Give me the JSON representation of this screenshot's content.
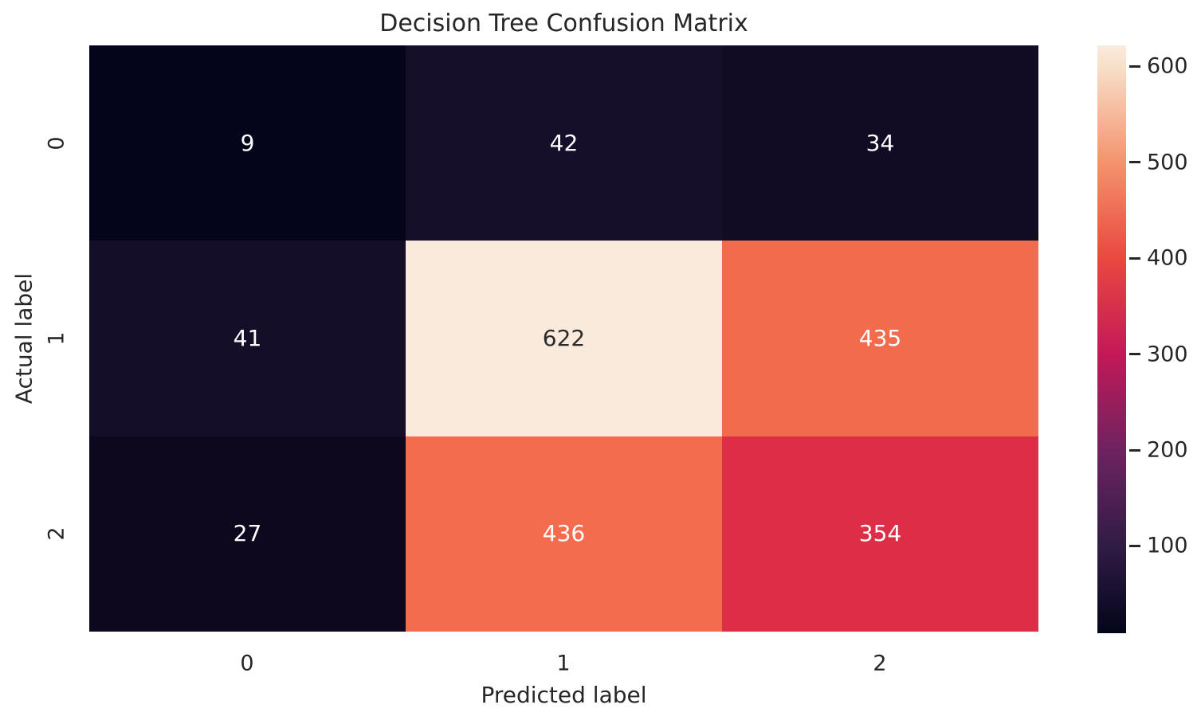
{
  "figure": {
    "title": "Decision Tree Confusion Matrix"
  },
  "chart_data": {
    "type": "heatmap",
    "title": "Decision Tree Confusion Matrix",
    "xlabel": "Predicted label",
    "ylabel": "Actual label",
    "x_tick_labels": [
      "0",
      "1",
      "2"
    ],
    "y_tick_labels": [
      "0",
      "1",
      "2"
    ],
    "matrix": [
      [
        9,
        42,
        34
      ],
      [
        41,
        622,
        435
      ],
      [
        27,
        436,
        354
      ]
    ],
    "vmin": 9,
    "vmax": 622,
    "colormap": "rocket",
    "grid": false,
    "legend_position": "right-colorbar",
    "colorbar_ticks": [
      600,
      500,
      400,
      300,
      200,
      100
    ],
    "cells": [
      {
        "row": 0,
        "col": 0,
        "value": "9",
        "color": "#04051A",
        "text_color": "#FFFFFF"
      },
      {
        "row": 0,
        "col": 1,
        "value": "42",
        "color": "#150F2A",
        "text_color": "#FFFFFF"
      },
      {
        "row": 0,
        "col": 2,
        "value": "34",
        "color": "#110B23",
        "text_color": "#FFFFFF"
      },
      {
        "row": 1,
        "col": 0,
        "value": "41",
        "color": "#140E28",
        "text_color": "#FFFFFF"
      },
      {
        "row": 1,
        "col": 1,
        "value": "622",
        "color": "#FAEADB",
        "text_color": "#2B2B2B"
      },
      {
        "row": 1,
        "col": 2,
        "value": "435",
        "color": "#F26B4D",
        "text_color": "#FFFFFF"
      },
      {
        "row": 2,
        "col": 0,
        "value": "27",
        "color": "#0D081E",
        "text_color": "#FFFFFF"
      },
      {
        "row": 2,
        "col": 1,
        "value": "436",
        "color": "#F26C4D",
        "text_color": "#FFFFFF"
      },
      {
        "row": 2,
        "col": 2,
        "value": "354",
        "color": "#DC2F47",
        "text_color": "#FFFFFF"
      }
    ],
    "colorbar_gradient_stops": [
      {
        "pos": 0,
        "color": "#03051A"
      },
      {
        "pos": 14.8,
        "color": "#301C45"
      },
      {
        "pos": 31.2,
        "color": "#6E2360"
      },
      {
        "pos": 47.5,
        "color": "#C41858"
      },
      {
        "pos": 63.8,
        "color": "#EA4840"
      },
      {
        "pos": 80.1,
        "color": "#F4936E"
      },
      {
        "pos": 96.4,
        "color": "#F8DFC9"
      },
      {
        "pos": 100,
        "color": "#FAEBDD"
      }
    ],
    "text_color": "#262626"
  }
}
